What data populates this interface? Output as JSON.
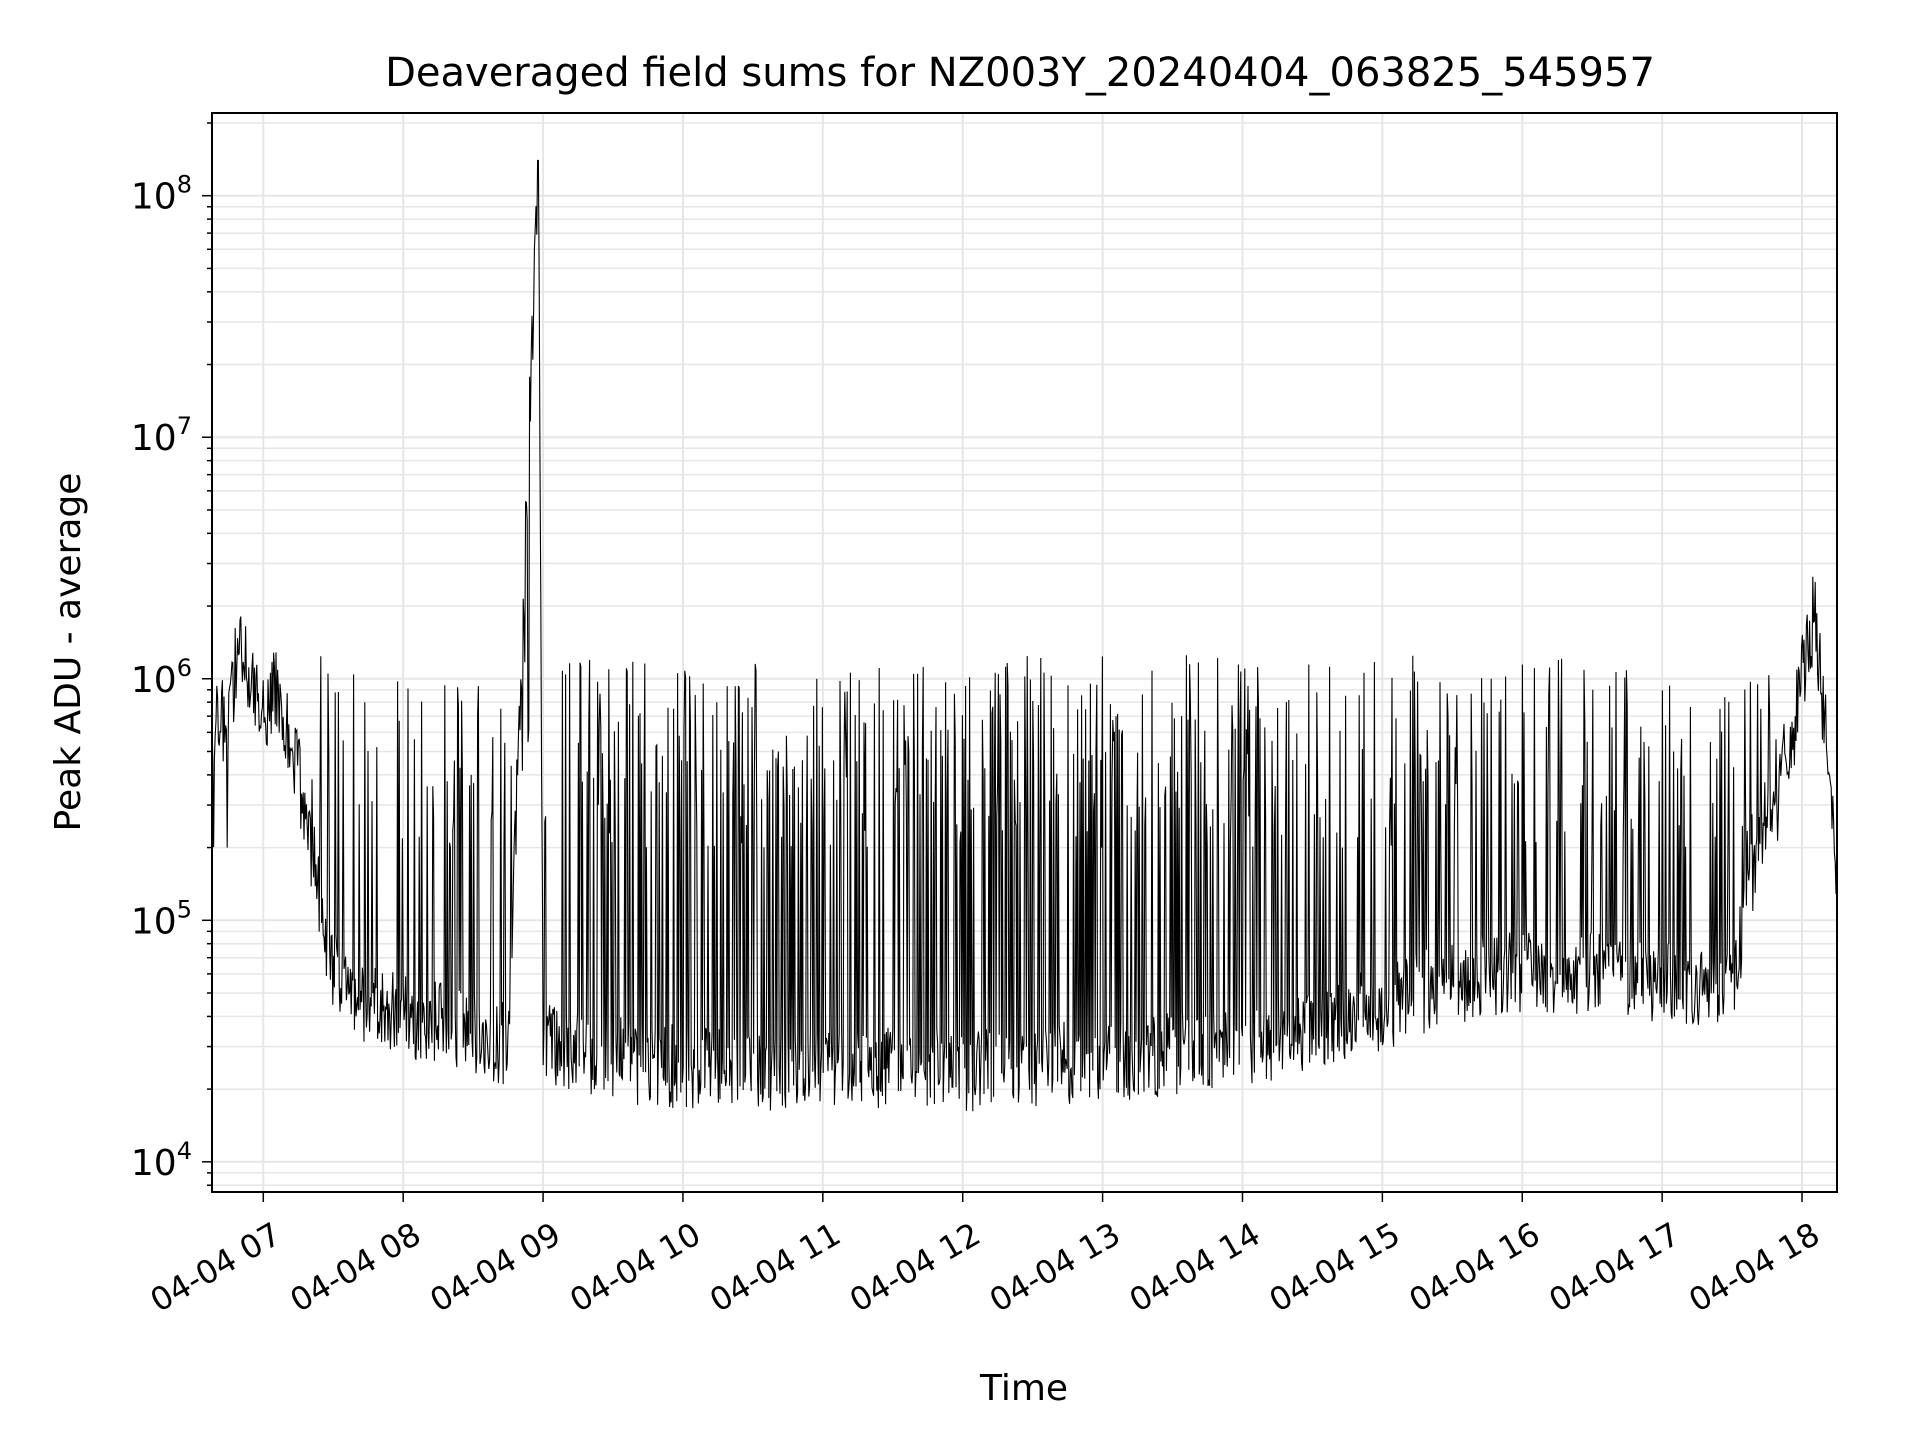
{
  "chart_data": {
    "type": "line",
    "title": "Deaveraged field sums for NZ003Y_20240404_063825_545957",
    "xlabel": "Time",
    "ylabel": "Peak ADU - average",
    "yscale": "log",
    "grid": true,
    "xlim": [
      "2024-04-04 06:38",
      "2024-04-04 18:15"
    ],
    "ylim": [
      7500,
      220000000
    ],
    "x_ticks": [
      {
        "value": "2024-04-04 07:00",
        "label": "04-04 07"
      },
      {
        "value": "2024-04-04 08:00",
        "label": "04-04 08"
      },
      {
        "value": "2024-04-04 09:00",
        "label": "04-04 09"
      },
      {
        "value": "2024-04-04 10:00",
        "label": "04-04 10"
      },
      {
        "value": "2024-04-04 11:00",
        "label": "04-04 11"
      },
      {
        "value": "2024-04-04 12:00",
        "label": "04-04 12"
      },
      {
        "value": "2024-04-04 13:00",
        "label": "04-04 13"
      },
      {
        "value": "2024-04-04 14:00",
        "label": "04-04 14"
      },
      {
        "value": "2024-04-04 15:00",
        "label": "04-04 15"
      },
      {
        "value": "2024-04-04 16:00",
        "label": "04-04 16"
      },
      {
        "value": "2024-04-04 17:00",
        "label": "04-04 17"
      },
      {
        "value": "2024-04-04 18:00",
        "label": "04-04 18"
      }
    ],
    "y_ticks": [
      {
        "value": 10000,
        "label_base": "10",
        "label_exp": "4"
      },
      {
        "value": 100000,
        "label_base": "10",
        "label_exp": "5"
      },
      {
        "value": 1000000,
        "label_base": "10",
        "label_exp": "6"
      },
      {
        "value": 10000000,
        "label_base": "10",
        "label_exp": "7"
      },
      {
        "value": 100000000,
        "label_base": "10",
        "label_exp": "8"
      }
    ],
    "line_color": "#000000",
    "series": [
      {
        "x": [
          "2024-04-04 06:38",
          "2024-04-04 06:45",
          "2024-04-04 06:50",
          "2024-04-04 06:55",
          "2024-04-04 07:00",
          "2024-04-04 07:05",
          "2024-04-04 07:10",
          "2024-04-04 07:15",
          "2024-04-04 07:20",
          "2024-04-04 07:30",
          "2024-04-04 07:45",
          "2024-04-04 08:00",
          "2024-04-04 08:15",
          "2024-04-04 08:30",
          "2024-04-04 08:45",
          "2024-04-04 08:58",
          "2024-04-04 09:00",
          "2024-04-04 09:05",
          "2024-04-04 09:15",
          "2024-04-04 09:30",
          "2024-04-04 09:45",
          "2024-04-04 10:00",
          "2024-04-04 10:15",
          "2024-04-04 10:30",
          "2024-04-04 10:45",
          "2024-04-04 11:00",
          "2024-04-04 11:15",
          "2024-04-04 11:30",
          "2024-04-04 11:45",
          "2024-04-04 12:00",
          "2024-04-04 12:15",
          "2024-04-04 12:30",
          "2024-04-04 12:45",
          "2024-04-04 13:00",
          "2024-04-04 13:15",
          "2024-04-04 13:30",
          "2024-04-04 13:45",
          "2024-04-04 14:00",
          "2024-04-04 14:15",
          "2024-04-04 14:30",
          "2024-04-04 14:45",
          "2024-04-04 15:00",
          "2024-04-04 15:15",
          "2024-04-04 15:30",
          "2024-04-04 15:45",
          "2024-04-04 16:00",
          "2024-04-04 16:15",
          "2024-04-04 16:30",
          "2024-04-04 16:45",
          "2024-04-04 17:00",
          "2024-04-04 17:15",
          "2024-04-04 17:30",
          "2024-04-04 17:45",
          "2024-04-04 17:55",
          "2024-04-04 18:05",
          "2024-04-04 18:10",
          "2024-04-04 18:15"
        ],
        "y": [
          600000,
          700000,
          1500000,
          1000000,
          700000,
          900000,
          600000,
          400000,
          200000,
          60000,
          45000,
          40000,
          38000,
          35000,
          30000,
          140000000,
          35000,
          30000,
          28000,
          27000,
          25000,
          25000,
          24000,
          24000,
          23000,
          25000,
          24000,
          25000,
          25000,
          24000,
          24000,
          25000,
          26000,
          26000,
          27000,
          28000,
          30000,
          30000,
          33000,
          35000,
          40000,
          42000,
          50000,
          55000,
          60000,
          62000,
          60000,
          60000,
          60000,
          55000,
          50000,
          55000,
          300000,
          500000,
          2000000,
          600000,
          150000
        ]
      }
    ]
  }
}
